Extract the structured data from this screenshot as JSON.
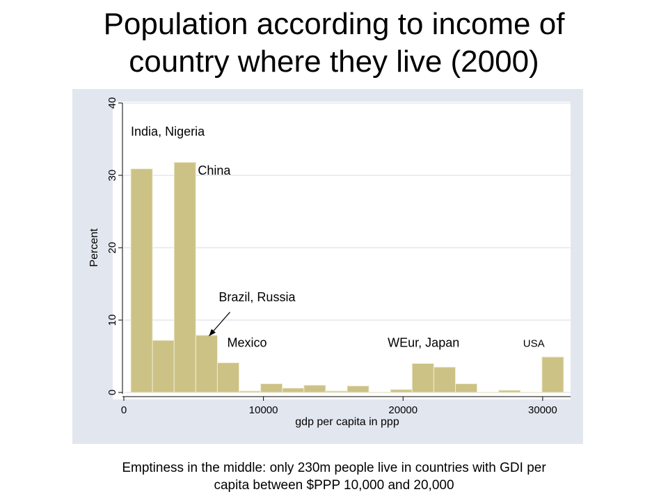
{
  "title_lines": [
    "Population according to income of",
    "country where they live (2000)"
  ],
  "caption_lines": [
    "Emptiness in the middle: only 230m people live in countries with GDI per",
    "capita between $PPP 10,000 and 20,000"
  ],
  "colors": {
    "bar": "#ccc286",
    "bar_edge": "#f0ecd2",
    "frame": "#e2e6ef",
    "plot_bg": "#ffffff",
    "grid": "#e4e8ee"
  },
  "chart_data": {
    "type": "bar",
    "title": "",
    "xlabel": "gdp per capita in ppp",
    "ylabel": "Percent",
    "xlim": [
      0,
      32000
    ],
    "ylim": [
      0,
      40
    ],
    "xticks": [
      0,
      10000,
      20000,
      30000
    ],
    "xtick_labels": [
      "0",
      "10000",
      "20000",
      "30000"
    ],
    "yticks": [
      0,
      10,
      20,
      30,
      40
    ],
    "ytick_labels": [
      "0",
      "10",
      "20",
      "30",
      "40"
    ],
    "grid": true,
    "bin_edges": [
      500,
      2050,
      3600,
      5150,
      6700,
      8250,
      9800,
      11350,
      12900,
      14450,
      16000,
      17550,
      19100,
      20650,
      22200,
      23750,
      25300,
      26850,
      28400,
      29950,
      31500
    ],
    "values": [
      30.9,
      7.2,
      31.8,
      7.9,
      4.1,
      0.2,
      1.2,
      0.6,
      1.0,
      0.2,
      0.9,
      0,
      0.4,
      4.0,
      3.5,
      1.2,
      0,
      0.3,
      0,
      4.9
    ],
    "annotations": [
      {
        "text": "India, Nigeria",
        "x": 500,
        "y": 35.5
      },
      {
        "text": "China",
        "x": 5300,
        "y": 30.1
      },
      {
        "text": "Brazil, Russia",
        "x": 6800,
        "y": 12.6
      },
      {
        "text": "Mexico",
        "x": 7400,
        "y": 6.3
      },
      {
        "text": "WEur, Japan",
        "x": 18900,
        "y": 6.3
      },
      {
        "text": "USA",
        "x": 28600,
        "y": 6.3
      }
    ],
    "arrow": {
      "from": [
        7600,
        11.1
      ],
      "to": [
        6100,
        7.8
      ]
    }
  }
}
